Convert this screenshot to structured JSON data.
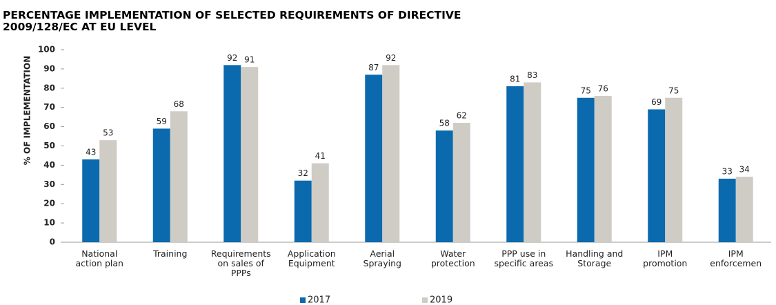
{
  "chart_data": {
    "type": "bar",
    "title": "PERCENTAGE IMPLEMENTATION OF SELECTED REQUIREMENTS OF DIRECTIVE\n2009/128/EC AT EU LEVEL",
    "y_label": "% OF IMPLEMENTATION",
    "categories": [
      "National\naction plan",
      "Training",
      "Requirements\non sales of\nPPPs",
      "Application\nEquipment",
      "Aerial\nSpraying",
      "Water\nprotection",
      "PPP use in\nspecific areas",
      "Handling and\nStorage",
      "IPM\npromotion",
      "IPM\nenforcemen"
    ],
    "series": [
      {
        "name": "2017",
        "color": "#0a6aad",
        "values": [
          43,
          59,
          92,
          32,
          87,
          58,
          81,
          75,
          69,
          33
        ]
      },
      {
        "name": "2019",
        "color": "#cfccc6",
        "values": [
          53,
          68,
          91,
          41,
          92,
          62,
          83,
          76,
          75,
          34
        ]
      }
    ],
    "ylim": [
      0,
      100
    ],
    "yticks": [
      0,
      10,
      20,
      30,
      40,
      50,
      60,
      70,
      80,
      90,
      100
    ],
    "legend": "bottom"
  }
}
